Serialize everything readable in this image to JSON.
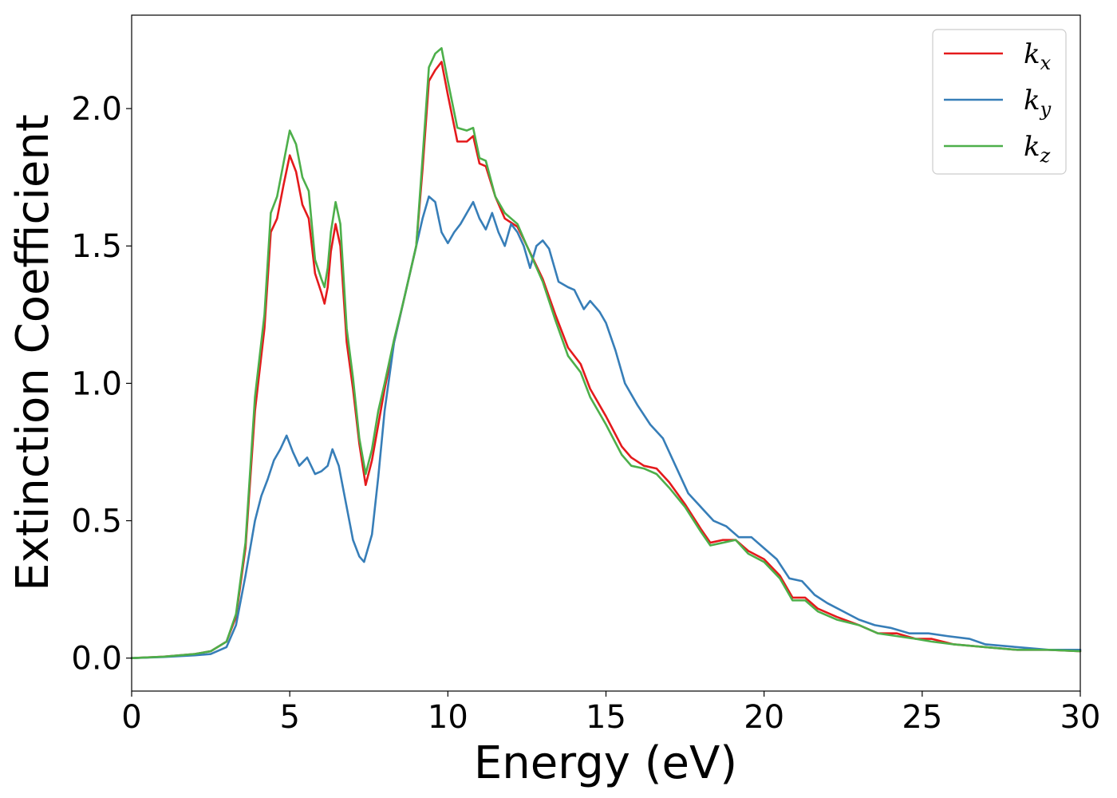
{
  "chart_data": {
    "type": "line",
    "xlabel": "Energy (eV)",
    "ylabel": "Extinction Coefficient",
    "xlim": [
      0,
      30
    ],
    "ylim": [
      -0.12,
      2.34
    ],
    "xticks": [
      0,
      5,
      10,
      15,
      20,
      25,
      30
    ],
    "xtick_labels": [
      "0",
      "5",
      "10",
      "15",
      "20",
      "25",
      "30"
    ],
    "yticks": [
      0.0,
      0.5,
      1.0,
      1.5,
      2.0
    ],
    "ytick_labels": [
      "0.0",
      "0.5",
      "1.0",
      "1.5",
      "2.0"
    ],
    "grid": false,
    "legend_position": "top-right",
    "series": [
      {
        "name": "k",
        "subscript": "x",
        "color": "#e41a1c",
        "points": [
          [
            0,
            0
          ],
          [
            1,
            0.005
          ],
          [
            2,
            0.015
          ],
          [
            2.5,
            0.025
          ],
          [
            3,
            0.06
          ],
          [
            3.3,
            0.15
          ],
          [
            3.6,
            0.4
          ],
          [
            3.9,
            0.9
          ],
          [
            4.2,
            1.2
          ],
          [
            4.4,
            1.55
          ],
          [
            4.6,
            1.6
          ],
          [
            4.8,
            1.72
          ],
          [
            5.0,
            1.83
          ],
          [
            5.2,
            1.77
          ],
          [
            5.4,
            1.65
          ],
          [
            5.6,
            1.6
          ],
          [
            5.8,
            1.4
          ],
          [
            6.0,
            1.33
          ],
          [
            6.1,
            1.29
          ],
          [
            6.2,
            1.35
          ],
          [
            6.3,
            1.48
          ],
          [
            6.45,
            1.58
          ],
          [
            6.6,
            1.5
          ],
          [
            6.8,
            1.15
          ],
          [
            7.0,
            0.98
          ],
          [
            7.2,
            0.78
          ],
          [
            7.4,
            0.63
          ],
          [
            7.6,
            0.72
          ],
          [
            7.8,
            0.85
          ],
          [
            8.0,
            0.98
          ],
          [
            8.3,
            1.15
          ],
          [
            8.6,
            1.3
          ],
          [
            9.0,
            1.5
          ],
          [
            9.2,
            1.78
          ],
          [
            9.4,
            2.1
          ],
          [
            9.6,
            2.14
          ],
          [
            9.8,
            2.17
          ],
          [
            10.0,
            2.05
          ],
          [
            10.3,
            1.88
          ],
          [
            10.6,
            1.88
          ],
          [
            10.8,
            1.9
          ],
          [
            11.0,
            1.8
          ],
          [
            11.2,
            1.79
          ],
          [
            11.5,
            1.68
          ],
          [
            11.8,
            1.6
          ],
          [
            12.2,
            1.57
          ],
          [
            12.5,
            1.5
          ],
          [
            13.0,
            1.38
          ],
          [
            13.4,
            1.25
          ],
          [
            13.8,
            1.13
          ],
          [
            14.2,
            1.07
          ],
          [
            14.5,
            0.98
          ],
          [
            15.0,
            0.88
          ],
          [
            15.5,
            0.77
          ],
          [
            15.8,
            0.73
          ],
          [
            16.2,
            0.7
          ],
          [
            16.6,
            0.69
          ],
          [
            17.0,
            0.64
          ],
          [
            17.5,
            0.56
          ],
          [
            18.0,
            0.47
          ],
          [
            18.3,
            0.42
          ],
          [
            18.7,
            0.43
          ],
          [
            19.1,
            0.43
          ],
          [
            19.5,
            0.39
          ],
          [
            20.0,
            0.36
          ],
          [
            20.5,
            0.3
          ],
          [
            20.9,
            0.22
          ],
          [
            21.3,
            0.22
          ],
          [
            21.7,
            0.18
          ],
          [
            22.3,
            0.15
          ],
          [
            23.0,
            0.12
          ],
          [
            23.6,
            0.09
          ],
          [
            24.2,
            0.09
          ],
          [
            24.8,
            0.07
          ],
          [
            25.3,
            0.07
          ],
          [
            26.0,
            0.05
          ],
          [
            27.0,
            0.04
          ],
          [
            28.0,
            0.03
          ],
          [
            29.0,
            0.03
          ],
          [
            30.0,
            0.025
          ]
        ]
      },
      {
        "name": "k",
        "subscript": "y",
        "color": "#377eb8",
        "points": [
          [
            0,
            0
          ],
          [
            1,
            0.004
          ],
          [
            2,
            0.01
          ],
          [
            2.5,
            0.015
          ],
          [
            3,
            0.04
          ],
          [
            3.3,
            0.12
          ],
          [
            3.6,
            0.3
          ],
          [
            3.9,
            0.5
          ],
          [
            4.1,
            0.59
          ],
          [
            4.3,
            0.65
          ],
          [
            4.5,
            0.72
          ],
          [
            4.7,
            0.76
          ],
          [
            4.9,
            0.81
          ],
          [
            5.1,
            0.75
          ],
          [
            5.3,
            0.7
          ],
          [
            5.55,
            0.73
          ],
          [
            5.8,
            0.67
          ],
          [
            6.0,
            0.68
          ],
          [
            6.2,
            0.7
          ],
          [
            6.35,
            0.76
          ],
          [
            6.55,
            0.7
          ],
          [
            6.8,
            0.55
          ],
          [
            7.0,
            0.43
          ],
          [
            7.2,
            0.37
          ],
          [
            7.35,
            0.35
          ],
          [
            7.6,
            0.45
          ],
          [
            7.8,
            0.66
          ],
          [
            8.0,
            0.9
          ],
          [
            8.3,
            1.15
          ],
          [
            8.6,
            1.3
          ],
          [
            9.0,
            1.5
          ],
          [
            9.2,
            1.6
          ],
          [
            9.4,
            1.68
          ],
          [
            9.6,
            1.66
          ],
          [
            9.8,
            1.55
          ],
          [
            10.0,
            1.51
          ],
          [
            10.2,
            1.55
          ],
          [
            10.4,
            1.58
          ],
          [
            10.6,
            1.62
          ],
          [
            10.8,
            1.66
          ],
          [
            11.0,
            1.6
          ],
          [
            11.2,
            1.56
          ],
          [
            11.4,
            1.62
          ],
          [
            11.6,
            1.55
          ],
          [
            11.8,
            1.5
          ],
          [
            12.0,
            1.58
          ],
          [
            12.2,
            1.55
          ],
          [
            12.4,
            1.5
          ],
          [
            12.6,
            1.42
          ],
          [
            12.8,
            1.5
          ],
          [
            13.0,
            1.52
          ],
          [
            13.2,
            1.49
          ],
          [
            13.5,
            1.37
          ],
          [
            13.8,
            1.35
          ],
          [
            14.0,
            1.34
          ],
          [
            14.3,
            1.27
          ],
          [
            14.5,
            1.3
          ],
          [
            14.8,
            1.26
          ],
          [
            15.0,
            1.22
          ],
          [
            15.3,
            1.12
          ],
          [
            15.6,
            1.0
          ],
          [
            16.0,
            0.92
          ],
          [
            16.4,
            0.85
          ],
          [
            16.8,
            0.8
          ],
          [
            17.2,
            0.7
          ],
          [
            17.6,
            0.6
          ],
          [
            18.0,
            0.55
          ],
          [
            18.4,
            0.5
          ],
          [
            18.8,
            0.48
          ],
          [
            19.2,
            0.44
          ],
          [
            19.6,
            0.44
          ],
          [
            20.0,
            0.4
          ],
          [
            20.4,
            0.36
          ],
          [
            20.8,
            0.29
          ],
          [
            21.2,
            0.28
          ],
          [
            21.6,
            0.23
          ],
          [
            22.0,
            0.2
          ],
          [
            22.5,
            0.17
          ],
          [
            23.0,
            0.14
          ],
          [
            23.5,
            0.12
          ],
          [
            24.0,
            0.11
          ],
          [
            24.6,
            0.09
          ],
          [
            25.2,
            0.09
          ],
          [
            25.8,
            0.08
          ],
          [
            26.5,
            0.07
          ],
          [
            27.0,
            0.05
          ],
          [
            28.0,
            0.04
          ],
          [
            29.0,
            0.03
          ],
          [
            30.0,
            0.03
          ]
        ]
      },
      {
        "name": "k",
        "subscript": "z",
        "color": "#4daf4a",
        "points": [
          [
            0,
            0
          ],
          [
            1,
            0.005
          ],
          [
            2,
            0.015
          ],
          [
            2.5,
            0.025
          ],
          [
            3,
            0.06
          ],
          [
            3.3,
            0.16
          ],
          [
            3.6,
            0.42
          ],
          [
            3.9,
            0.95
          ],
          [
            4.2,
            1.25
          ],
          [
            4.4,
            1.62
          ],
          [
            4.6,
            1.68
          ],
          [
            4.8,
            1.8
          ],
          [
            5.0,
            1.92
          ],
          [
            5.2,
            1.87
          ],
          [
            5.4,
            1.75
          ],
          [
            5.6,
            1.7
          ],
          [
            5.8,
            1.45
          ],
          [
            6.0,
            1.38
          ],
          [
            6.1,
            1.35
          ],
          [
            6.2,
            1.42
          ],
          [
            6.3,
            1.55
          ],
          [
            6.45,
            1.66
          ],
          [
            6.6,
            1.58
          ],
          [
            6.8,
            1.2
          ],
          [
            7.0,
            1.02
          ],
          [
            7.2,
            0.8
          ],
          [
            7.4,
            0.67
          ],
          [
            7.6,
            0.76
          ],
          [
            7.8,
            0.9
          ],
          [
            8.0,
            1.0
          ],
          [
            8.3,
            1.16
          ],
          [
            8.6,
            1.3
          ],
          [
            9.0,
            1.5
          ],
          [
            9.2,
            1.82
          ],
          [
            9.4,
            2.15
          ],
          [
            9.6,
            2.2
          ],
          [
            9.8,
            2.22
          ],
          [
            10.0,
            2.1
          ],
          [
            10.3,
            1.93
          ],
          [
            10.6,
            1.92
          ],
          [
            10.8,
            1.93
          ],
          [
            11.0,
            1.82
          ],
          [
            11.2,
            1.81
          ],
          [
            11.5,
            1.68
          ],
          [
            11.8,
            1.62
          ],
          [
            12.2,
            1.58
          ],
          [
            12.5,
            1.5
          ],
          [
            13.0,
            1.37
          ],
          [
            13.4,
            1.23
          ],
          [
            13.8,
            1.1
          ],
          [
            14.2,
            1.04
          ],
          [
            14.5,
            0.95
          ],
          [
            15.0,
            0.85
          ],
          [
            15.5,
            0.74
          ],
          [
            15.8,
            0.7
          ],
          [
            16.2,
            0.69
          ],
          [
            16.6,
            0.67
          ],
          [
            17.0,
            0.62
          ],
          [
            17.5,
            0.55
          ],
          [
            18.0,
            0.46
          ],
          [
            18.3,
            0.41
          ],
          [
            18.7,
            0.42
          ],
          [
            19.1,
            0.43
          ],
          [
            19.5,
            0.38
          ],
          [
            20.0,
            0.35
          ],
          [
            20.5,
            0.29
          ],
          [
            20.9,
            0.21
          ],
          [
            21.3,
            0.21
          ],
          [
            21.7,
            0.17
          ],
          [
            22.3,
            0.14
          ],
          [
            23.0,
            0.12
          ],
          [
            23.6,
            0.09
          ],
          [
            24.2,
            0.08
          ],
          [
            24.8,
            0.07
          ],
          [
            25.3,
            0.06
          ],
          [
            26.0,
            0.05
          ],
          [
            27.0,
            0.04
          ],
          [
            28.0,
            0.03
          ],
          [
            29.0,
            0.03
          ],
          [
            30.0,
            0.025
          ]
        ]
      }
    ]
  }
}
